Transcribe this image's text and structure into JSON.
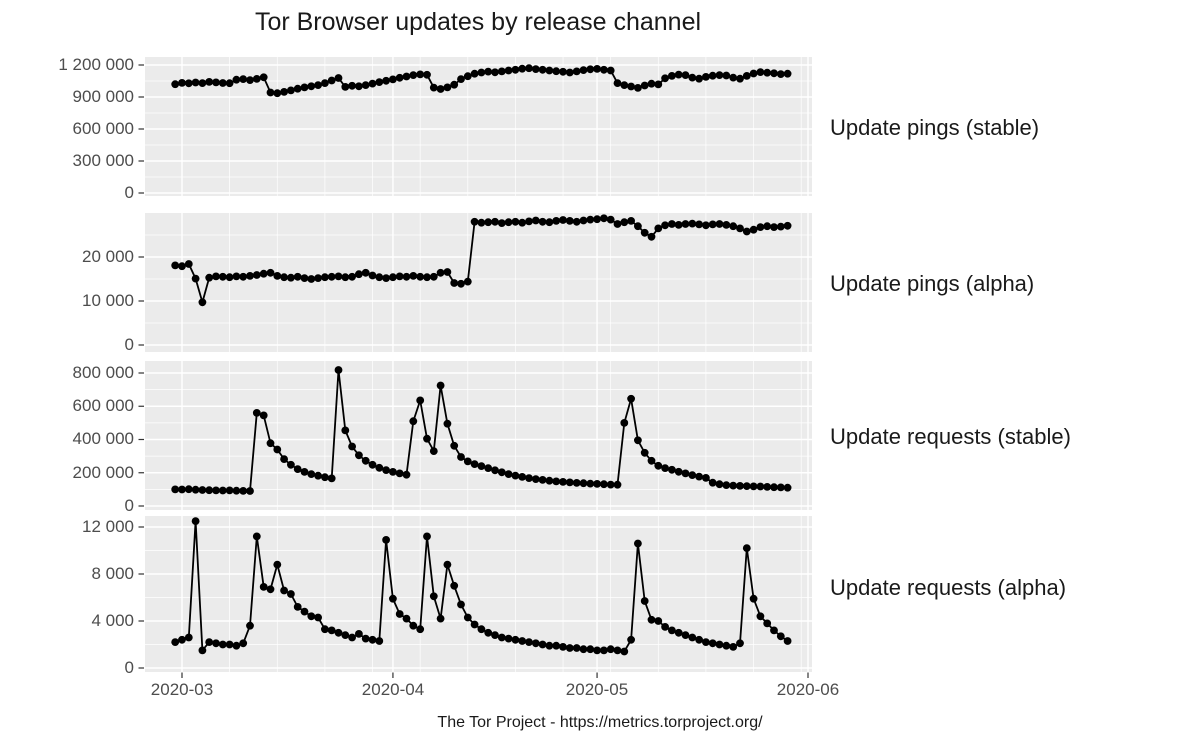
{
  "chart_data": {
    "type": "line",
    "title": "Tor Browser updates by release channel",
    "caption": "The Tor Project - https://metrics.torproject.org/",
    "x_axis": {
      "tick_labels": [
        "2020-03",
        "2020-04",
        "2020-05",
        "2020-06"
      ],
      "start_date": "2020-02-29",
      "end_date": "2020-05-29",
      "frequency": "daily",
      "minor_gridlines": "weekly"
    },
    "style": {
      "point_color": "#000000",
      "line_color": "#000000",
      "panel_bg": "#ebebeb",
      "gridline_color": "#ffffff",
      "tick_text_color": "#4d4d4d",
      "text_color": "#1a1a1a"
    },
    "panels": [
      {
        "label": "Update pings (stable)",
        "y_ticks": [
          0,
          300000,
          600000,
          900000,
          1200000
        ],
        "y_tick_labels": [
          "0",
          "300 000",
          "600 000",
          "900 000",
          "1 200 000"
        ],
        "ylim": [
          -28000,
          1275000
        ],
        "values": [
          1020000,
          1032000,
          1028000,
          1036000,
          1030000,
          1042000,
          1037000,
          1031000,
          1029000,
          1062000,
          1068000,
          1058000,
          1070000,
          1085000,
          942000,
          936000,
          948000,
          962000,
          978000,
          990000,
          1000000,
          1012000,
          1030000,
          1055000,
          1078000,
          995000,
          1005000,
          1000000,
          1012000,
          1026000,
          1040000,
          1052000,
          1065000,
          1080000,
          1092000,
          1105000,
          1112000,
          1108000,
          988000,
          975000,
          990000,
          1015000,
          1068000,
          1095000,
          1118000,
          1130000,
          1138000,
          1132000,
          1140000,
          1148000,
          1155000,
          1165000,
          1170000,
          1162000,
          1155000,
          1148000,
          1142000,
          1136000,
          1130000,
          1140000,
          1152000,
          1160000,
          1163000,
          1155000,
          1148000,
          1030000,
          1012000,
          998000,
          985000,
          1008000,
          1025000,
          1018000,
          1075000,
          1098000,
          1110000,
          1105000,
          1082000,
          1072000,
          1088000,
          1100000,
          1105000,
          1102000,
          1082000,
          1072000,
          1098000,
          1120000,
          1133000,
          1128000,
          1122000,
          1115000,
          1118000
        ]
      },
      {
        "label": "Update pings (alpha)",
        "y_ticks": [
          0,
          10000,
          20000
        ],
        "y_tick_labels": [
          "0",
          "10 000",
          "20 000"
        ],
        "ylim": [
          -1600,
          30000
        ],
        "values": [
          18100,
          17900,
          18400,
          15100,
          9700,
          15300,
          15600,
          15500,
          15400,
          15600,
          15500,
          15700,
          15900,
          16200,
          16400,
          15700,
          15400,
          15300,
          15500,
          15200,
          15000,
          15200,
          15400,
          15500,
          15600,
          15400,
          15500,
          16100,
          16400,
          15800,
          15400,
          15200,
          15400,
          15600,
          15500,
          15700,
          15500,
          15400,
          15500,
          16400,
          16600,
          14100,
          13900,
          14400,
          28000,
          27800,
          27900,
          28000,
          27700,
          27900,
          28000,
          27800,
          28100,
          28300,
          28000,
          27900,
          28200,
          28400,
          28200,
          28000,
          28300,
          28500,
          28600,
          28800,
          28500,
          27500,
          27900,
          28200,
          27000,
          25500,
          24600,
          26500,
          27200,
          27500,
          27300,
          27500,
          27600,
          27400,
          27200,
          27400,
          27500,
          27300,
          27000,
          26500,
          25800,
          26200,
          26800,
          27000,
          26800,
          26900,
          27100
        ]
      },
      {
        "label": "Update requests (stable)",
        "y_ticks": [
          0,
          200000,
          400000,
          600000,
          800000
        ],
        "y_tick_labels": [
          "0",
          "200 000",
          "400 000",
          "600 000",
          "800 000"
        ],
        "ylim": [
          -24000,
          872000
        ],
        "values": [
          100000,
          99000,
          101000,
          98000,
          96000,
          95000,
          94000,
          93000,
          94000,
          92000,
          91000,
          90000,
          560000,
          545000,
          378000,
          340000,
          282000,
          248000,
          222000,
          205000,
          192000,
          182000,
          173000,
          166000,
          818000,
          455000,
          358000,
          305000,
          272000,
          248000,
          230000,
          216000,
          205000,
          196000,
          188000,
          510000,
          635000,
          405000,
          330000,
          725000,
          495000,
          362000,
          295000,
          268000,
          252000,
          240000,
          228000,
          215000,
          203000,
          192000,
          183000,
          175000,
          168000,
          162000,
          157000,
          152000,
          148000,
          145000,
          142000,
          139000,
          137000,
          135000,
          133000,
          131000,
          129000,
          128000,
          500000,
          645000,
          395000,
          320000,
          272000,
          242000,
          228000,
          218000,
          206000,
          196000,
          186000,
          177000,
          169000,
          140000,
          131000,
          126000,
          123000,
          121000,
          120000,
          118000,
          117000,
          115000,
          113000,
          112000,
          110000
        ]
      },
      {
        "label": "Update requests (alpha)",
        "y_ticks": [
          0,
          4000,
          8000,
          12000
        ],
        "y_tick_labels": [
          "0",
          "4 000",
          "8 000",
          "12 000"
        ],
        "ylim": [
          -350,
          12900
        ],
        "values": [
          2200,
          2400,
          2600,
          12500,
          1500,
          2200,
          2100,
          2000,
          2000,
          1900,
          2100,
          3600,
          11200,
          6900,
          6700,
          8800,
          6600,
          6300,
          5200,
          4800,
          4400,
          4300,
          3300,
          3200,
          3000,
          2800,
          2600,
          2900,
          2500,
          2400,
          2300,
          10900,
          5900,
          4600,
          4200,
          3600,
          3300,
          11200,
          6100,
          4200,
          8800,
          7000,
          5400,
          4300,
          3700,
          3300,
          3000,
          2800,
          2600,
          2500,
          2400,
          2300,
          2200,
          2100,
          2000,
          1900,
          1900,
          1800,
          1700,
          1700,
          1600,
          1600,
          1500,
          1500,
          1600,
          1500,
          1400,
          2400,
          10600,
          5700,
          4100,
          4000,
          3500,
          3200,
          3000,
          2800,
          2600,
          2400,
          2200,
          2100,
          2000,
          1900,
          1800,
          2100,
          10200,
          5900,
          4400,
          3800,
          3200,
          2700,
          2300
        ]
      }
    ]
  }
}
